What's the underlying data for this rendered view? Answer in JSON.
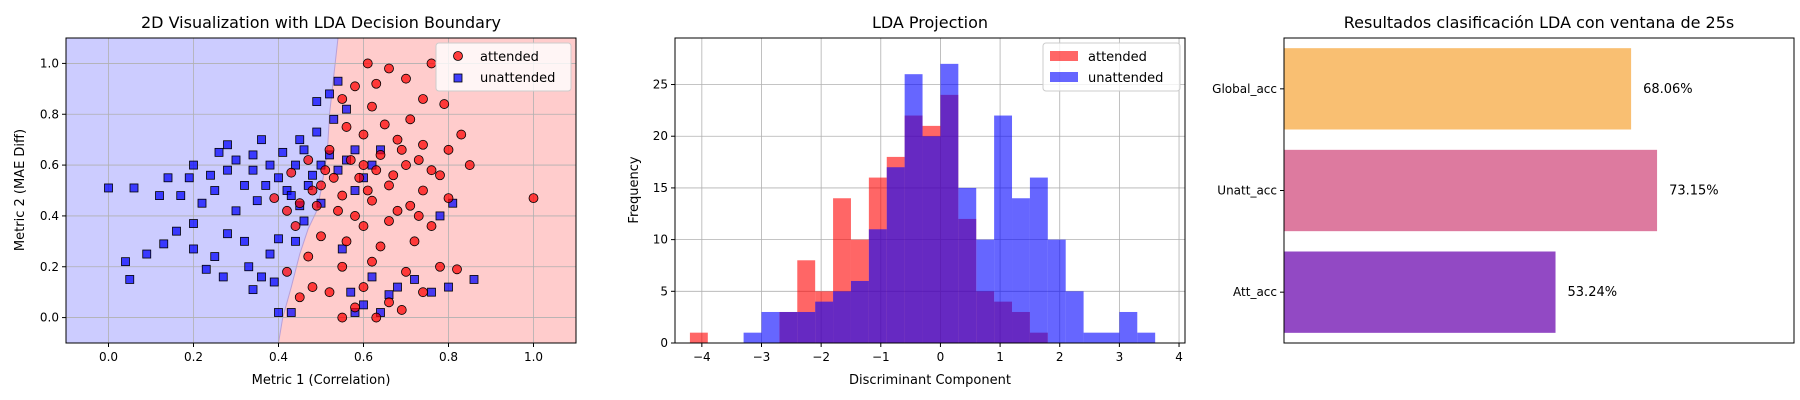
{
  "chart_data": [
    {
      "type": "scatter",
      "title": "2D Visualization with LDA Decision Boundary",
      "xlabel": "Metric 1 (Correlation)",
      "ylabel": "Metric 2 (MAE Diff)",
      "xlim": [
        -0.1,
        1.1
      ],
      "ylim": [
        -0.1,
        1.1
      ],
      "xticks": [
        "0.0",
        "0.2",
        "0.4",
        "0.6",
        "0.8",
        "1.0"
      ],
      "yticks": [
        "0.0",
        "0.2",
        "0.4",
        "0.6",
        "0.8",
        "1.0"
      ],
      "grid": true,
      "legend": "top-right",
      "colors": {
        "region_attended": "#ffcccc",
        "region_unattended": "#ccccff",
        "attended": "#ff0000",
        "unattended": "#0000ff"
      },
      "boundary": [
        [
          0.54,
          1.1
        ],
        [
          0.53,
          0.95
        ],
        [
          0.52,
          0.8
        ],
        [
          0.515,
          0.65
        ],
        [
          0.5,
          0.5
        ],
        [
          0.49,
          0.42
        ],
        [
          0.47,
          0.35
        ],
        [
          0.45,
          0.25
        ],
        [
          0.43,
          0.12
        ],
        [
          0.41,
          0.0
        ],
        [
          0.4,
          -0.1
        ]
      ],
      "series": [
        {
          "name": "attended",
          "marker": "circle",
          "points": [
            [
              1.0,
              0.47
            ],
            [
              0.61,
              1.0
            ],
            [
              0.66,
              0.98
            ],
            [
              0.76,
              1.0
            ],
            [
              0.63,
              0.92
            ],
            [
              0.58,
              0.91
            ],
            [
              0.7,
              0.94
            ],
            [
              0.74,
              0.86
            ],
            [
              0.62,
              0.83
            ],
            [
              0.55,
              0.86
            ],
            [
              0.71,
              0.78
            ],
            [
              0.79,
              0.84
            ],
            [
              0.83,
              0.72
            ],
            [
              0.65,
              0.76
            ],
            [
              0.56,
              0.75
            ],
            [
              0.6,
              0.72
            ],
            [
              0.68,
              0.7
            ],
            [
              0.74,
              0.68
            ],
            [
              0.8,
              0.66
            ],
            [
              0.78,
              0.56
            ],
            [
              0.85,
              0.6
            ],
            [
              0.7,
              0.6
            ],
            [
              0.63,
              0.58
            ],
            [
              0.57,
              0.62
            ],
            [
              0.52,
              0.66
            ],
            [
              0.66,
              0.52
            ],
            [
              0.74,
              0.5
            ],
            [
              0.8,
              0.47
            ],
            [
              0.71,
              0.44
            ],
            [
              0.62,
              0.46
            ],
            [
              0.55,
              0.48
            ],
            [
              0.48,
              0.5
            ],
            [
              0.45,
              0.45
            ],
            [
              0.58,
              0.4
            ],
            [
              0.66,
              0.38
            ],
            [
              0.76,
              0.36
            ],
            [
              0.72,
              0.3
            ],
            [
              0.64,
              0.28
            ],
            [
              0.56,
              0.3
            ],
            [
              0.5,
              0.32
            ],
            [
              0.44,
              0.36
            ],
            [
              0.47,
              0.24
            ],
            [
              0.55,
              0.2
            ],
            [
              0.62,
              0.22
            ],
            [
              0.7,
              0.18
            ],
            [
              0.78,
              0.2
            ],
            [
              0.82,
              0.19
            ],
            [
              0.6,
              0.12
            ],
            [
              0.52,
              0.1
            ],
            [
              0.45,
              0.08
            ],
            [
              0.58,
              0.04
            ],
            [
              0.66,
              0.06
            ],
            [
              0.74,
              0.1
            ],
            [
              0.55,
              0.0
            ],
            [
              0.63,
              0.0
            ],
            [
              0.69,
              0.03
            ],
            [
              0.48,
              0.12
            ],
            [
              0.42,
              0.18
            ],
            [
              0.5,
              0.52
            ],
            [
              0.53,
              0.55
            ],
            [
              0.59,
              0.55
            ],
            [
              0.61,
              0.5
            ],
            [
              0.64,
              0.64
            ],
            [
              0.69,
              0.66
            ],
            [
              0.73,
              0.62
            ],
            [
              0.76,
              0.58
            ],
            [
              0.67,
              0.56
            ],
            [
              0.6,
              0.6
            ],
            [
              0.51,
              0.58
            ],
            [
              0.47,
              0.62
            ],
            [
              0.43,
              0.57
            ],
            [
              0.49,
              0.44
            ],
            [
              0.54,
              0.42
            ],
            [
              0.6,
              0.36
            ],
            [
              0.68,
              0.42
            ],
            [
              0.73,
              0.4
            ],
            [
              0.39,
              0.47
            ],
            [
              0.42,
              0.42
            ]
          ]
        },
        {
          "name": "unattended",
          "marker": "square",
          "points": [
            [
              0.0,
              0.51
            ],
            [
              0.06,
              0.51
            ],
            [
              0.04,
              0.22
            ],
            [
              0.05,
              0.15
            ],
            [
              0.09,
              0.25
            ],
            [
              0.13,
              0.29
            ],
            [
              0.16,
              0.34
            ],
            [
              0.17,
              0.48
            ],
            [
              0.2,
              0.37
            ],
            [
              0.2,
              0.27
            ],
            [
              0.23,
              0.19
            ],
            [
              0.25,
              0.24
            ],
            [
              0.27,
              0.16
            ],
            [
              0.28,
              0.33
            ],
            [
              0.22,
              0.45
            ],
            [
              0.19,
              0.55
            ],
            [
              0.2,
              0.6
            ],
            [
              0.24,
              0.56
            ],
            [
              0.26,
              0.65
            ],
            [
              0.28,
              0.68
            ],
            [
              0.3,
              0.62
            ],
            [
              0.3,
              0.42
            ],
            [
              0.32,
              0.3
            ],
            [
              0.33,
              0.2
            ],
            [
              0.34,
              0.11
            ],
            [
              0.36,
              0.16
            ],
            [
              0.38,
              0.25
            ],
            [
              0.4,
              0.31
            ],
            [
              0.39,
              0.14
            ],
            [
              0.4,
              0.02
            ],
            [
              0.43,
              0.02
            ],
            [
              0.32,
              0.52
            ],
            [
              0.34,
              0.58
            ],
            [
              0.35,
              0.46
            ],
            [
              0.37,
              0.52
            ],
            [
              0.38,
              0.6
            ],
            [
              0.4,
              0.55
            ],
            [
              0.42,
              0.5
            ],
            [
              0.44,
              0.6
            ],
            [
              0.46,
              0.66
            ],
            [
              0.48,
              0.56
            ],
            [
              0.5,
              0.6
            ],
            [
              0.52,
              0.64
            ],
            [
              0.54,
              0.58
            ],
            [
              0.56,
              0.62
            ],
            [
              0.58,
              0.66
            ],
            [
              0.45,
              0.7
            ],
            [
              0.49,
              0.73
            ],
            [
              0.53,
              0.78
            ],
            [
              0.56,
              0.82
            ],
            [
              0.52,
              0.88
            ],
            [
              0.49,
              0.85
            ],
            [
              0.54,
              0.93
            ],
            [
              0.41,
              0.65
            ],
            [
              0.43,
              0.48
            ],
            [
              0.45,
              0.44
            ],
            [
              0.47,
              0.52
            ],
            [
              0.6,
              0.55
            ],
            [
              0.62,
              0.6
            ],
            [
              0.64,
              0.66
            ],
            [
              0.58,
              0.5
            ],
            [
              0.5,
              0.45
            ],
            [
              0.46,
              0.38
            ],
            [
              0.44,
              0.3
            ],
            [
              0.55,
              0.27
            ],
            [
              0.62,
              0.16
            ],
            [
              0.66,
              0.09
            ],
            [
              0.6,
              0.05
            ],
            [
              0.58,
              0.02
            ],
            [
              0.64,
              0.02
            ],
            [
              0.57,
              0.1
            ],
            [
              0.68,
              0.12
            ],
            [
              0.72,
              0.15
            ],
            [
              0.76,
              0.1
            ],
            [
              0.8,
              0.12
            ],
            [
              0.78,
              0.4
            ],
            [
              0.81,
              0.45
            ],
            [
              0.86,
              0.15
            ],
            [
              0.34,
              0.64
            ],
            [
              0.36,
              0.7
            ],
            [
              0.28,
              0.58
            ],
            [
              0.25,
              0.5
            ],
            [
              0.14,
              0.55
            ],
            [
              0.12,
              0.48
            ]
          ]
        }
      ]
    },
    {
      "type": "histogram",
      "title": "LDA Projection",
      "xlabel": "Discriminant Component",
      "ylabel": "Frequency",
      "xlim": [
        -4.45,
        4.1
      ],
      "ylim": [
        0,
        29.5
      ],
      "xticks": [
        "−4",
        "−3",
        "−2",
        "−1",
        "0",
        "1",
        "2",
        "3",
        "4"
      ],
      "yticks": [
        "0",
        "5",
        "10",
        "15",
        "20",
        "25"
      ],
      "grid": true,
      "legend": "top-right",
      "bin_width": 0.3,
      "series": [
        {
          "name": "attended",
          "color": "#ff0000",
          "bins": [
            [
              -4.2,
              1
            ],
            [
              -2.7,
              3
            ],
            [
              -2.4,
              8
            ],
            [
              -2.1,
              5
            ],
            [
              -1.8,
              14
            ],
            [
              -1.5,
              10
            ],
            [
              -1.2,
              16
            ],
            [
              -0.9,
              18
            ],
            [
              -0.6,
              22
            ],
            [
              -0.3,
              21
            ],
            [
              0.0,
              24
            ],
            [
              0.3,
              12
            ],
            [
              0.6,
              5
            ],
            [
              0.9,
              4
            ],
            [
              1.2,
              3
            ],
            [
              1.5,
              1
            ]
          ]
        },
        {
          "name": "unattended",
          "color": "#0000ff",
          "bins": [
            [
              -3.3,
              1
            ],
            [
              -3.0,
              3
            ],
            [
              -2.7,
              3
            ],
            [
              -2.4,
              3
            ],
            [
              -2.1,
              4
            ],
            [
              -1.8,
              5
            ],
            [
              -1.5,
              6
            ],
            [
              -1.2,
              11
            ],
            [
              -0.9,
              17
            ],
            [
              -0.6,
              26
            ],
            [
              -0.3,
              20
            ],
            [
              0.0,
              27
            ],
            [
              0.3,
              15
            ],
            [
              0.6,
              10
            ],
            [
              0.9,
              22
            ],
            [
              1.2,
              14
            ],
            [
              1.5,
              16
            ],
            [
              1.8,
              10
            ],
            [
              2.1,
              5
            ],
            [
              2.4,
              1
            ],
            [
              2.7,
              1
            ],
            [
              3.0,
              3
            ],
            [
              3.3,
              1
            ]
          ]
        }
      ]
    },
    {
      "type": "bar",
      "orientation": "horizontal",
      "title": "Resultados clasificación LDA con ventana de 25s",
      "xlim": [
        0,
        1
      ],
      "categories": [
        "Global_acc",
        "Unatt_acc",
        "Att_acc"
      ],
      "values": [
        0.6806,
        0.7315,
        0.5324
      ],
      "labels": [
        "68.06%",
        "73.15%",
        "53.24%"
      ],
      "colors": [
        "#f9bf72",
        "#dd7a9f",
        "#9249c4"
      ]
    }
  ]
}
